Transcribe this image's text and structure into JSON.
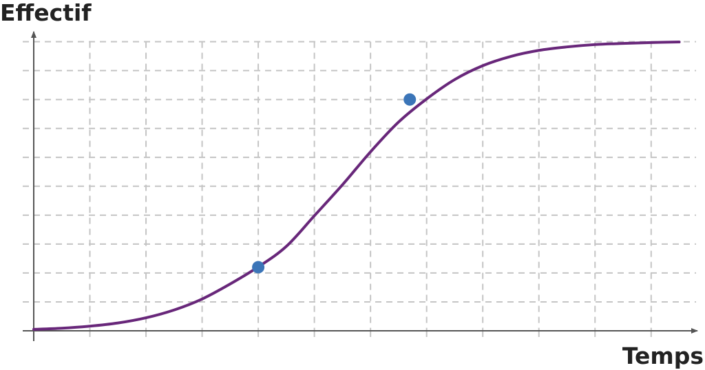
{
  "chart_data": {
    "type": "line",
    "title": "",
    "xlabel": "Temps",
    "ylabel": "Effectif",
    "xlim": [
      0,
      11.8
    ],
    "ylim": [
      0,
      10.3
    ],
    "grid": true,
    "grid_style": "dashed",
    "tick_labels": false,
    "series": [
      {
        "color": "#68277a",
        "x": [
          0,
          0.5,
          1,
          1.5,
          2,
          2.5,
          3,
          3.5,
          4,
          4.5,
          5,
          5.5,
          6,
          6.5,
          7,
          7.5,
          8,
          8.5,
          9,
          9.5,
          10,
          10.5,
          11,
          11.5
        ],
        "y": [
          0.05,
          0.09,
          0.16,
          0.27,
          0.45,
          0.72,
          1.1,
          1.62,
          2.21,
          2.92,
          3.98,
          5.05,
          6.19,
          7.22,
          8.02,
          8.69,
          9.17,
          9.49,
          9.7,
          9.82,
          9.9,
          9.94,
          9.97,
          9.99
        ]
      }
    ],
    "points": [
      {
        "x": 4,
        "y": 2.2,
        "color": "#3b75b8"
      },
      {
        "x": 6.7,
        "y": 8.0,
        "color": "#3b75b8"
      }
    ]
  }
}
